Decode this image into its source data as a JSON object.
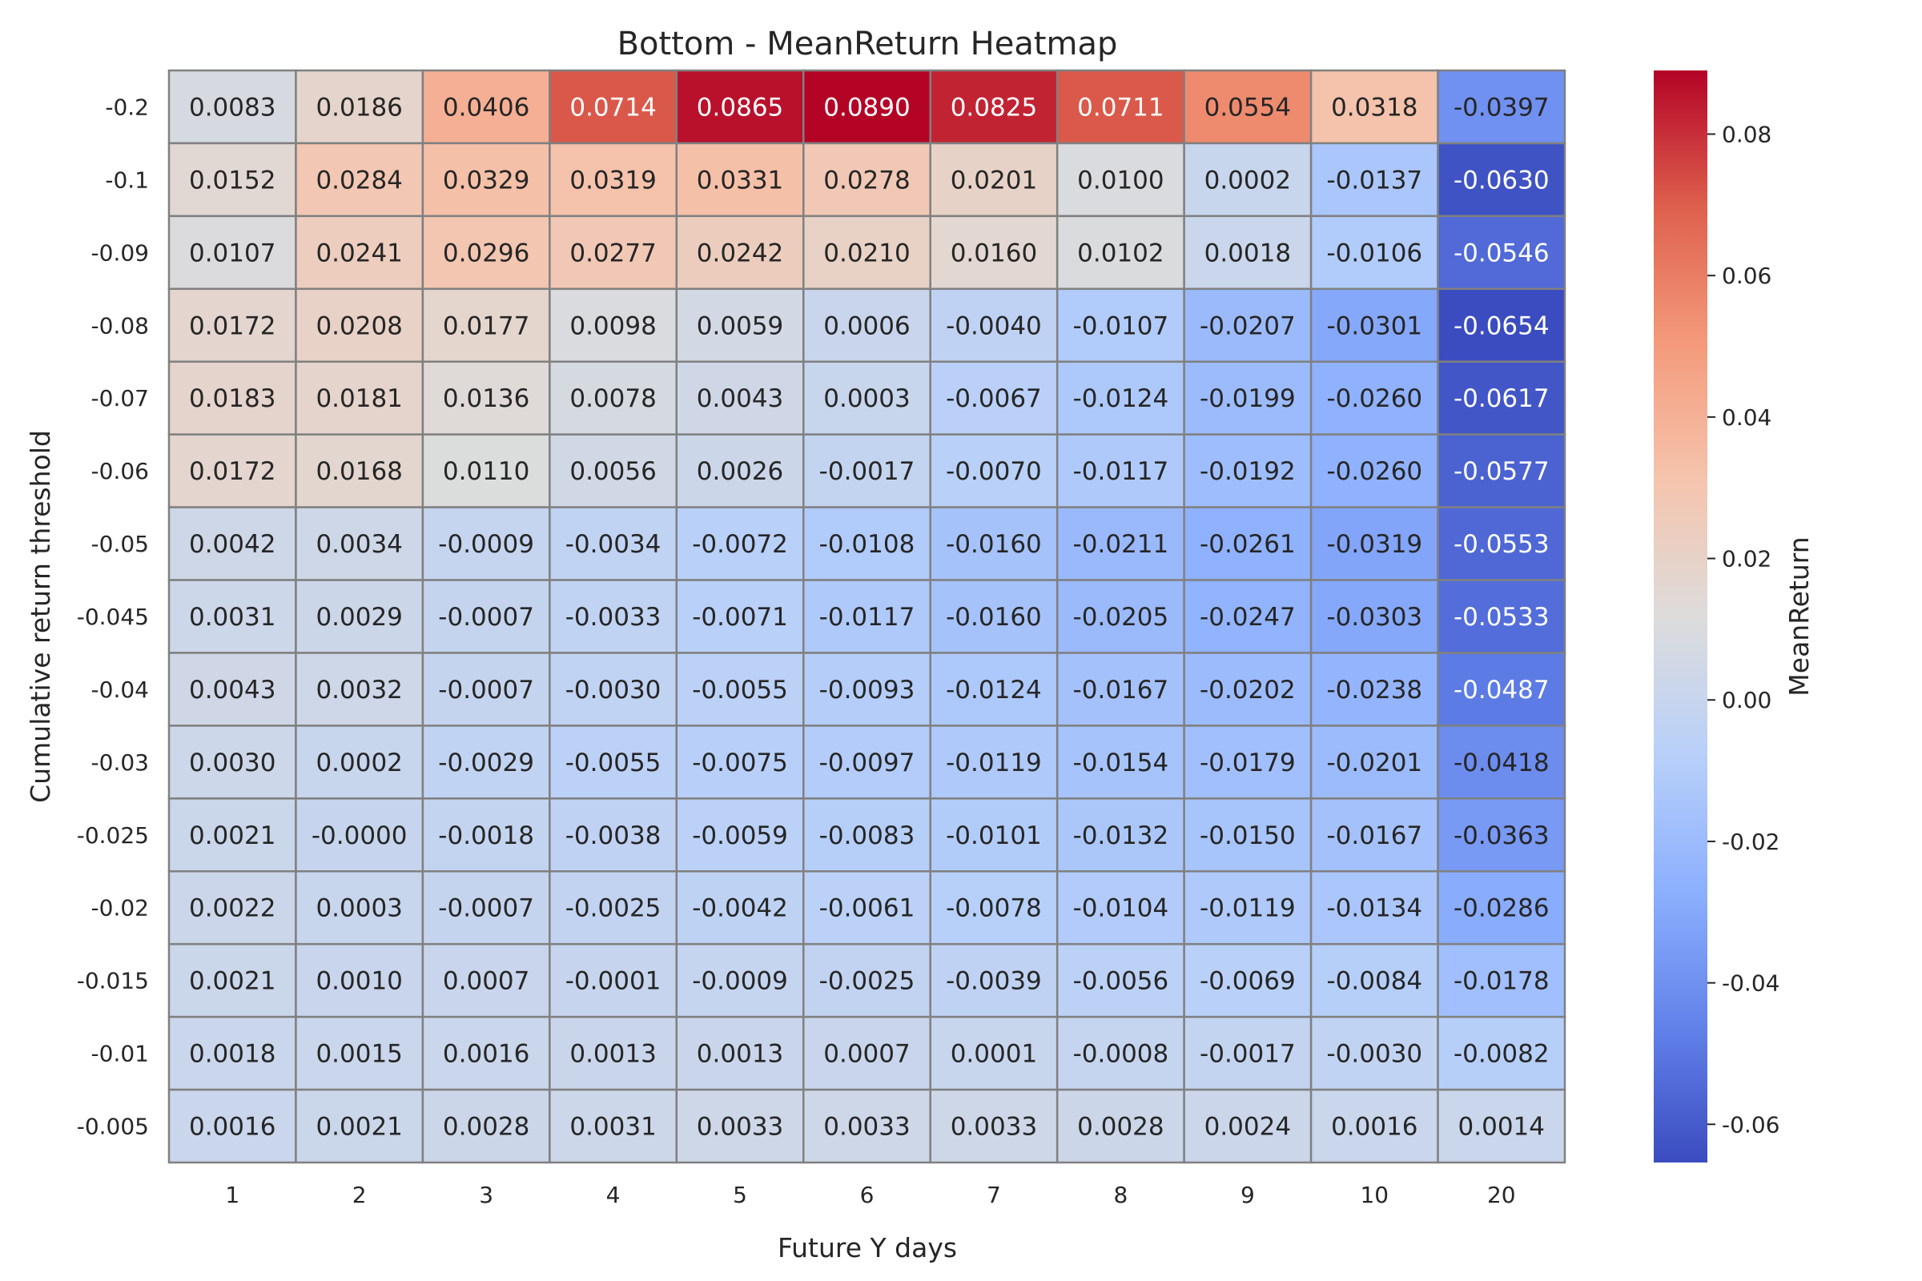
{
  "chart_data": {
    "type": "heatmap",
    "title": "Bottom - MeanReturn Heatmap",
    "xlabel": "Future Y days",
    "ylabel": "Cumulative return threshold",
    "colorbar_label": "MeanReturn",
    "colormap": "coolwarm",
    "vmin": -0.0654,
    "vmax": 0.089,
    "colorbar_ticks": [
      "0.08",
      "0.06",
      "0.04",
      "0.02",
      "0.00",
      "-0.02",
      "-0.04",
      "-0.06"
    ],
    "x_categories": [
      "1",
      "2",
      "3",
      "4",
      "5",
      "6",
      "7",
      "8",
      "9",
      "10",
      "20"
    ],
    "y_categories": [
      "-0.2",
      "-0.1",
      "-0.09",
      "-0.08",
      "-0.07",
      "-0.06",
      "-0.05",
      "-0.045",
      "-0.04",
      "-0.03",
      "-0.025",
      "-0.02",
      "-0.015",
      "-0.01",
      "-0.005"
    ],
    "values": [
      [
        "0.0083",
        "0.0186",
        "0.0406",
        "0.0714",
        "0.0865",
        "0.0890",
        "0.0825",
        "0.0711",
        "0.0554",
        "0.0318",
        "-0.0397"
      ],
      [
        "0.0152",
        "0.0284",
        "0.0329",
        "0.0319",
        "0.0331",
        "0.0278",
        "0.0201",
        "0.0100",
        "0.0002",
        "-0.0137",
        "-0.0630"
      ],
      [
        "0.0107",
        "0.0241",
        "0.0296",
        "0.0277",
        "0.0242",
        "0.0210",
        "0.0160",
        "0.0102",
        "0.0018",
        "-0.0106",
        "-0.0546"
      ],
      [
        "0.0172",
        "0.0208",
        "0.0177",
        "0.0098",
        "0.0059",
        "0.0006",
        "-0.0040",
        "-0.0107",
        "-0.0207",
        "-0.0301",
        "-0.0654"
      ],
      [
        "0.0183",
        "0.0181",
        "0.0136",
        "0.0078",
        "0.0043",
        "0.0003",
        "-0.0067",
        "-0.0124",
        "-0.0199",
        "-0.0260",
        "-0.0617"
      ],
      [
        "0.0172",
        "0.0168",
        "0.0110",
        "0.0056",
        "0.0026",
        "-0.0017",
        "-0.0070",
        "-0.0117",
        "-0.0192",
        "-0.0260",
        "-0.0577"
      ],
      [
        "0.0042",
        "0.0034",
        "-0.0009",
        "-0.0034",
        "-0.0072",
        "-0.0108",
        "-0.0160",
        "-0.0211",
        "-0.0261",
        "-0.0319",
        "-0.0553"
      ],
      [
        "0.0031",
        "0.0029",
        "-0.0007",
        "-0.0033",
        "-0.0071",
        "-0.0117",
        "-0.0160",
        "-0.0205",
        "-0.0247",
        "-0.0303",
        "-0.0533"
      ],
      [
        "0.0043",
        "0.0032",
        "-0.0007",
        "-0.0030",
        "-0.0055",
        "-0.0093",
        "-0.0124",
        "-0.0167",
        "-0.0202",
        "-0.0238",
        "-0.0487"
      ],
      [
        "0.0030",
        "0.0002",
        "-0.0029",
        "-0.0055",
        "-0.0075",
        "-0.0097",
        "-0.0119",
        "-0.0154",
        "-0.0179",
        "-0.0201",
        "-0.0418"
      ],
      [
        "0.0021",
        "-0.0000",
        "-0.0018",
        "-0.0038",
        "-0.0059",
        "-0.0083",
        "-0.0101",
        "-0.0132",
        "-0.0150",
        "-0.0167",
        "-0.0363"
      ],
      [
        "0.0022",
        "0.0003",
        "-0.0007",
        "-0.0025",
        "-0.0042",
        "-0.0061",
        "-0.0078",
        "-0.0104",
        "-0.0119",
        "-0.0134",
        "-0.0286"
      ],
      [
        "0.0021",
        "0.0010",
        "0.0007",
        "-0.0001",
        "-0.0009",
        "-0.0025",
        "-0.0039",
        "-0.0056",
        "-0.0069",
        "-0.0084",
        "-0.0178"
      ],
      [
        "0.0018",
        "0.0015",
        "0.0016",
        "0.0013",
        "0.0013",
        "0.0007",
        "0.0001",
        "-0.0008",
        "-0.0017",
        "-0.0030",
        "-0.0082"
      ],
      [
        "0.0016",
        "0.0021",
        "0.0028",
        "0.0031",
        "0.0033",
        "0.0033",
        "0.0033",
        "0.0028",
        "0.0024",
        "0.0016",
        "0.0014"
      ]
    ]
  }
}
